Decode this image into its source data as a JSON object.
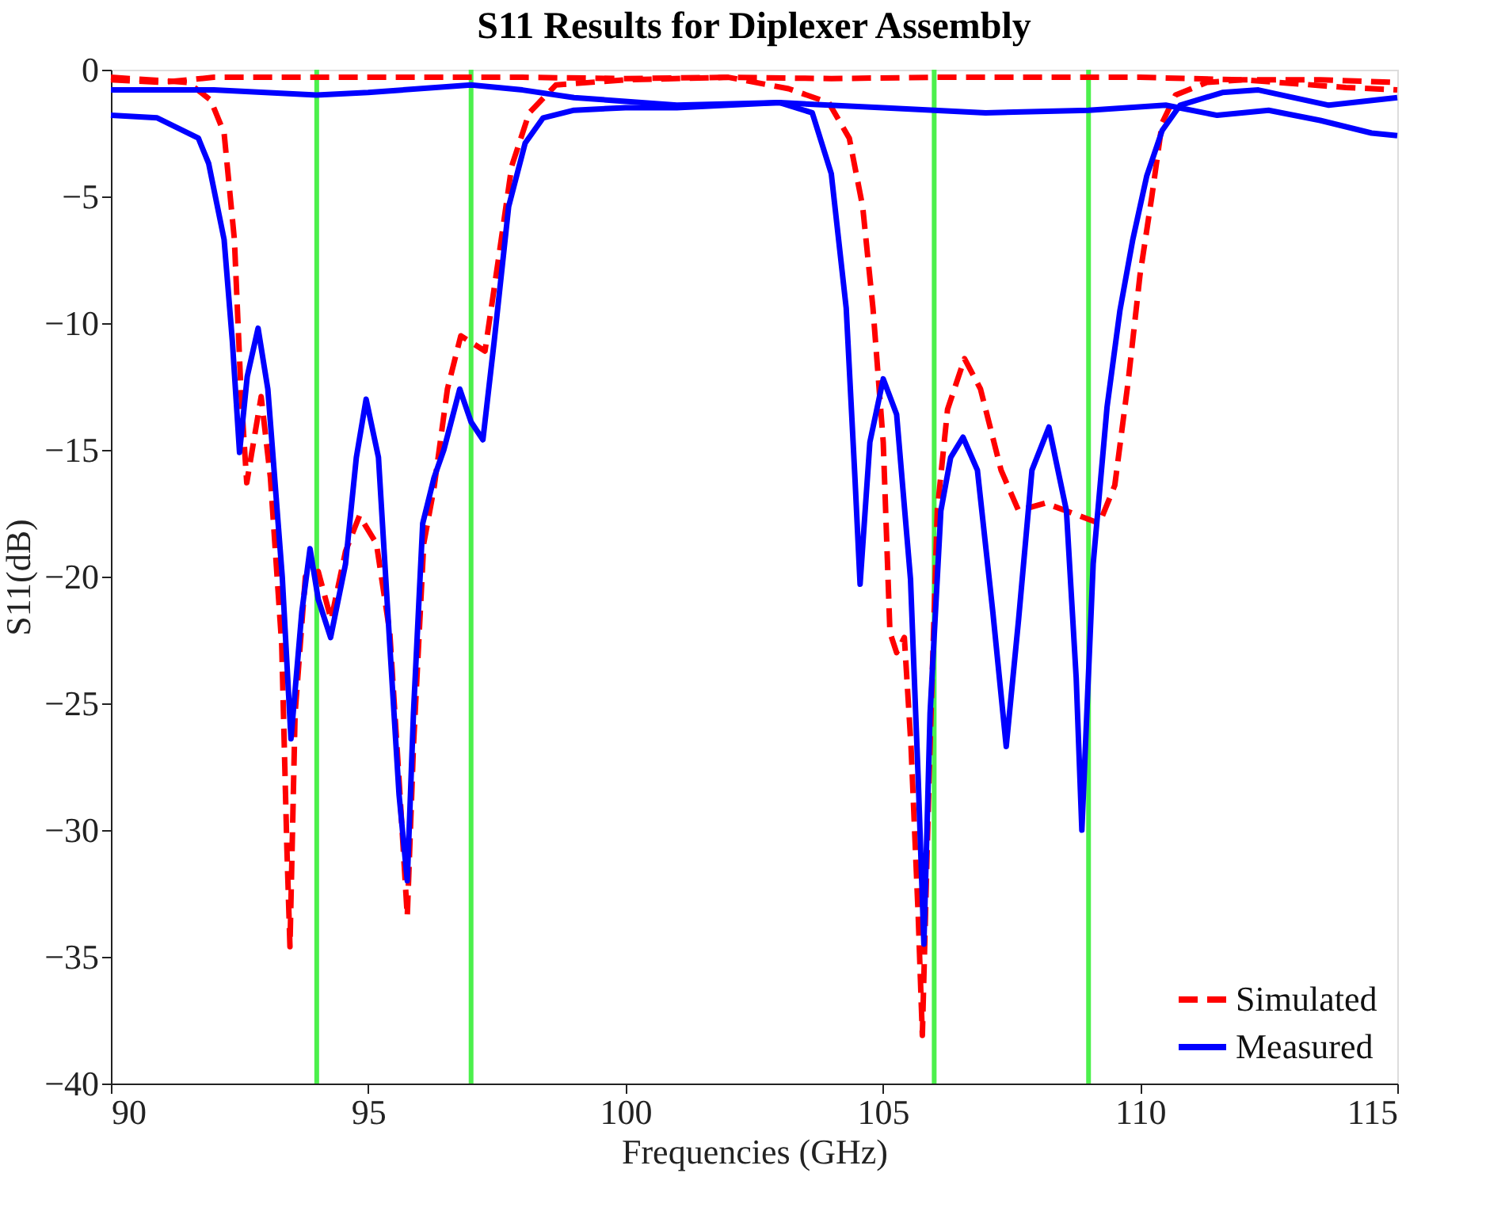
{
  "chart_data": {
    "type": "line",
    "title": "S11 Results for Diplexer Assembly",
    "xlabel": "Frequencies (GHz)",
    "ylabel": "S11(dB)",
    "xlim": [
      90,
      115
    ],
    "xticks": [
      90,
      95,
      100,
      105,
      110,
      115
    ],
    "ylim": [
      -40,
      0
    ],
    "yticks": [
      -40,
      -35,
      -30,
      -25,
      -20,
      -15,
      -10,
      -5,
      0
    ],
    "grid": false,
    "legend": "bottom right",
    "marker": "none",
    "series": [
      {
        "name": "Simulated",
        "color": "#ff0000",
        "line_style": "dashed",
        "x": [
          90,
          91.5,
          91.94,
          92.2,
          92.4,
          92.53,
          92.64,
          92.92,
          93.1,
          93.32,
          93.42,
          93.48,
          93.58,
          93.78,
          94.03,
          94.28,
          94.56,
          94.83,
          95.16,
          95.42,
          95.6,
          95.76,
          95.88,
          96.08,
          96.28,
          96.54,
          96.8,
          97.27,
          97.53,
          97.79,
          98.13,
          98.65,
          100,
          102,
          103.17,
          103.95,
          104.35,
          104.61,
          104.81,
          105.01,
          105.14,
          105.27,
          105.42,
          105.55,
          105.69,
          105.77,
          105.9,
          106.06,
          106.26,
          106.59,
          106.9,
          107.3,
          107.64,
          108.16,
          108.69,
          109.21,
          109.51,
          109.77,
          110.0,
          110.23,
          110.43,
          110.69,
          111.3,
          112,
          113.5,
          115
        ],
        "values": [
          -0.3,
          -0.5,
          -1.2,
          -2.5,
          -6.7,
          -12.8,
          -16.3,
          -12.9,
          -16.1,
          -22.7,
          -30.7,
          -34.6,
          -25.4,
          -20,
          -19.8,
          -21.7,
          -19,
          -17.6,
          -18.7,
          -22.2,
          -28,
          -33.4,
          -26.7,
          -18.7,
          -16.5,
          -12.6,
          -10.5,
          -11.1,
          -7.5,
          -3.8,
          -1.7,
          -0.6,
          -0.4,
          -0.3,
          -0.75,
          -1.3,
          -2.7,
          -5.4,
          -9.4,
          -14.7,
          -22.2,
          -23,
          -22.4,
          -26.7,
          -33.4,
          -38.1,
          -28,
          -17.4,
          -13.4,
          -11.4,
          -12.6,
          -15.8,
          -17.4,
          -17.1,
          -17.5,
          -17.9,
          -16.4,
          -12.3,
          -8.1,
          -5,
          -2.1,
          -1.0,
          -0.5,
          -0.4,
          -0.4,
          -0.5
        ]
      },
      {
        "name": "Measured",
        "color": "#0000ff",
        "line_style": "solid",
        "x": [
          90,
          90.9,
          91.7,
          91.9,
          92.2,
          92.36,
          92.5,
          92.65,
          92.86,
          93.05,
          93.33,
          93.5,
          93.71,
          93.87,
          94.03,
          94.27,
          94.56,
          94.77,
          94.96,
          95.2,
          95.42,
          95.6,
          95.76,
          95.88,
          96.06,
          96.28,
          96.47,
          96.78,
          97.0,
          97.23,
          97.45,
          97.73,
          98.05,
          98.4,
          99,
          100,
          101,
          102,
          103,
          103.63,
          104.0,
          104.29,
          104.46,
          104.56,
          104.75,
          105.01,
          105.27,
          105.54,
          105.69,
          105.8,
          105.92,
          106.13,
          106.32,
          106.56,
          106.84,
          107.14,
          107.4,
          107.64,
          107.9,
          108.23,
          108.57,
          108.76,
          108.87,
          109.09,
          109.36,
          109.61,
          109.86,
          110.13,
          110.43,
          110.78,
          111.6,
          112.3,
          113.67,
          115
        ],
        "values": [
          -1.8,
          -1.9,
          -2.7,
          -3.7,
          -6.7,
          -10.7,
          -15.1,
          -12.1,
          -10.2,
          -12.6,
          -20,
          -26.4,
          -21.4,
          -18.9,
          -20.9,
          -22.4,
          -19.5,
          -15.3,
          -13,
          -15.3,
          -22.7,
          -28.6,
          -32,
          -25.4,
          -17.9,
          -16.1,
          -15,
          -12.6,
          -13.9,
          -14.6,
          -10.7,
          -5.4,
          -2.9,
          -1.9,
          -1.6,
          -1.5,
          -1.5,
          -1.4,
          -1.3,
          -1.7,
          -4.1,
          -9.4,
          -16.1,
          -20.3,
          -14.7,
          -12.2,
          -13.6,
          -20.1,
          -28,
          -34.5,
          -25.4,
          -17.4,
          -15.3,
          -14.5,
          -15.8,
          -21.4,
          -26.7,
          -21.7,
          -15.8,
          -14.1,
          -17.4,
          -24,
          -30,
          -19.5,
          -13.3,
          -9.5,
          -6.7,
          -4.2,
          -2.4,
          -1.4,
          -0.9,
          -0.8,
          -1.4,
          -1.1
        ]
      },
      {
        "color": "#ff0000",
        "line_style": "dashed",
        "x": [
          90,
          91,
          92,
          94,
          96,
          98,
          100,
          102,
          104,
          106,
          108,
          110,
          112,
          114,
          115
        ],
        "values": [
          -0.4,
          -0.5,
          -0.3,
          -0.3,
          -0.3,
          -0.3,
          -0.35,
          -0.3,
          -0.35,
          -0.3,
          -0.3,
          -0.3,
          -0.4,
          -0.7,
          -0.8
        ]
      },
      {
        "color": "#0000ff",
        "line_style": "solid",
        "x": [
          90,
          92,
          94,
          95,
          97,
          98,
          99,
          101,
          103,
          105,
          107,
          109,
          110.5,
          111.5,
          112.5,
          113.5,
          114.5,
          115
        ],
        "values": [
          -0.8,
          -0.8,
          -1.0,
          -0.9,
          -0.6,
          -0.8,
          -1.1,
          -1.4,
          -1.3,
          -1.5,
          -1.7,
          -1.6,
          -1.4,
          -1.8,
          -1.6,
          -2.0,
          -2.5,
          -2.6
        ]
      }
    ],
    "ref_lines": [
      {
        "axis": "x",
        "value": 94,
        "color": "#4cf04c"
      },
      {
        "axis": "x",
        "value": 97,
        "color": "#4cf04c"
      },
      {
        "axis": "x",
        "value": 106,
        "color": "#4cf04c"
      },
      {
        "axis": "x",
        "value": 109,
        "color": "#4cf04c"
      }
    ]
  }
}
